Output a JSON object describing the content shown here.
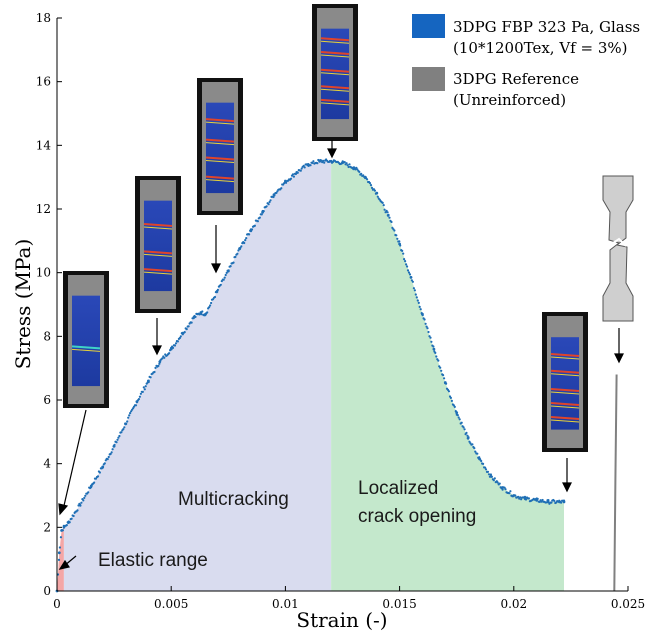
{
  "chart_data": {
    "type": "scatter",
    "xlabel": "Strain (-)",
    "ylabel": "Stress (MPa)",
    "xlim": [
      0,
      0.025
    ],
    "ylim": [
      0,
      18
    ],
    "x_ticks": [
      0,
      0.005,
      0.01,
      0.015,
      0.02,
      0.025
    ],
    "x_tick_labels": [
      "0",
      "0.005",
      "0.01",
      "0.015",
      "0.02",
      "0.025"
    ],
    "y_ticks": [
      0,
      2,
      4,
      6,
      8,
      10,
      12,
      14,
      16,
      18
    ],
    "y_tick_labels": [
      "0",
      "2",
      "4",
      "6",
      "8",
      "10",
      "12",
      "14",
      "16",
      "18"
    ],
    "grid": false,
    "legend_position": "top-right",
    "legend": [
      {
        "line1": "3DPG FBP 323 Pa, Glass",
        "line2": "(10*1200Tex, Vf = 3%)",
        "color": "#1565c0"
      },
      {
        "line1": "3DPG Reference",
        "line2": "(Unreinforced)",
        "color": "#808080"
      }
    ],
    "series": [
      {
        "name": "3DPG FBP 323 Pa, Glass (10*1200Tex, Vf = 3%)",
        "color": "#1f6fb5",
        "x": [
          0,
          0.0001,
          0.0002,
          0.0003,
          0.0005,
          0.001,
          0.0015,
          0.002,
          0.0025,
          0.003,
          0.0035,
          0.004,
          0.0045,
          0.005,
          0.0055,
          0.006,
          0.0063,
          0.0065,
          0.007,
          0.0075,
          0.008,
          0.0085,
          0.009,
          0.0095,
          0.01,
          0.0105,
          0.011,
          0.0115,
          0.012,
          0.0125,
          0.013,
          0.0135,
          0.014,
          0.0145,
          0.015,
          0.0155,
          0.016,
          0.0165,
          0.017,
          0.0175,
          0.018,
          0.0185,
          0.019,
          0.0195,
          0.02,
          0.0205,
          0.021,
          0.0215,
          0.022,
          0.0222
        ],
        "y": [
          0,
          1.2,
          1.9,
          2.0,
          2.15,
          2.7,
          3.3,
          3.9,
          4.55,
          5.25,
          5.95,
          6.6,
          7.2,
          7.6,
          8.1,
          8.6,
          8.75,
          8.7,
          9.4,
          10.05,
          10.75,
          11.35,
          11.9,
          12.45,
          12.85,
          13.15,
          13.4,
          13.5,
          13.5,
          13.45,
          13.3,
          13.0,
          12.5,
          11.8,
          10.9,
          9.85,
          8.7,
          7.6,
          6.55,
          5.6,
          4.8,
          4.15,
          3.6,
          3.25,
          3.0,
          2.9,
          2.85,
          2.8,
          2.8,
          2.8
        ]
      },
      {
        "name": "3DPG Reference (Unreinforced)",
        "color": "#808080",
        "x": [
          0.0244,
          0.02445,
          0.0245
        ],
        "y": [
          0,
          3.5,
          6.8
        ]
      }
    ],
    "regions": [
      {
        "label": "Elastic range",
        "x_start": 0,
        "x_end": 0.0003,
        "color": "#f4a6a6"
      },
      {
        "label": "Multicracking",
        "x_start": 0.0003,
        "x_end": 0.012,
        "color": "#d9dcef"
      },
      {
        "label_line1": "Localized",
        "label_line2": "crack opening",
        "x_start": 0.012,
        "x_end": 0.0222,
        "color": "#c4e8cc"
      }
    ],
    "inset_images": [
      "specimen-dic-1",
      "specimen-dic-2",
      "specimen-dic-3",
      "specimen-dic-4",
      "specimen-dic-5",
      "reference-specimen-sketch"
    ]
  }
}
